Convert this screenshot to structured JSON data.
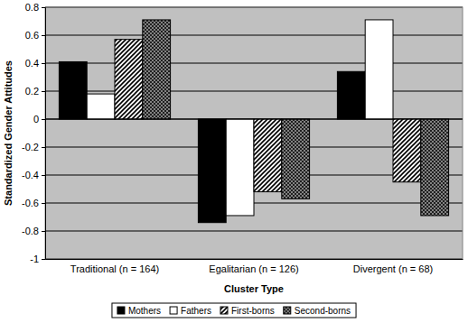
{
  "chart_data": {
    "type": "bar",
    "y_label": "Standardized Gender Attitudes",
    "x_label": "Cluster Type",
    "categories": [
      "Traditional (n = 164)",
      "Egalitarian (n = 126)",
      "Divergent (n = 68)"
    ],
    "series": [
      {
        "name": "Mothers",
        "color": "#000000",
        "values": [
          0.41,
          -0.74,
          0.34
        ]
      },
      {
        "name": "Fathers",
        "color": "#ffffff",
        "values": [
          0.18,
          -0.69,
          0.71
        ]
      },
      {
        "name": "First-borns",
        "color": "#808080",
        "values": [
          0.57,
          -0.52,
          -0.45
        ]
      },
      {
        "name": "Second-borns",
        "color": "#202020",
        "values": [
          0.71,
          -0.57,
          -0.69
        ]
      }
    ],
    "ylim": [
      -1,
      0.8
    ],
    "yticks": [
      -1,
      -0.8,
      -0.6,
      -0.4,
      -0.2,
      0,
      0.2,
      0.4,
      0.6,
      0.8
    ],
    "grid": true,
    "legend": "bottom"
  }
}
